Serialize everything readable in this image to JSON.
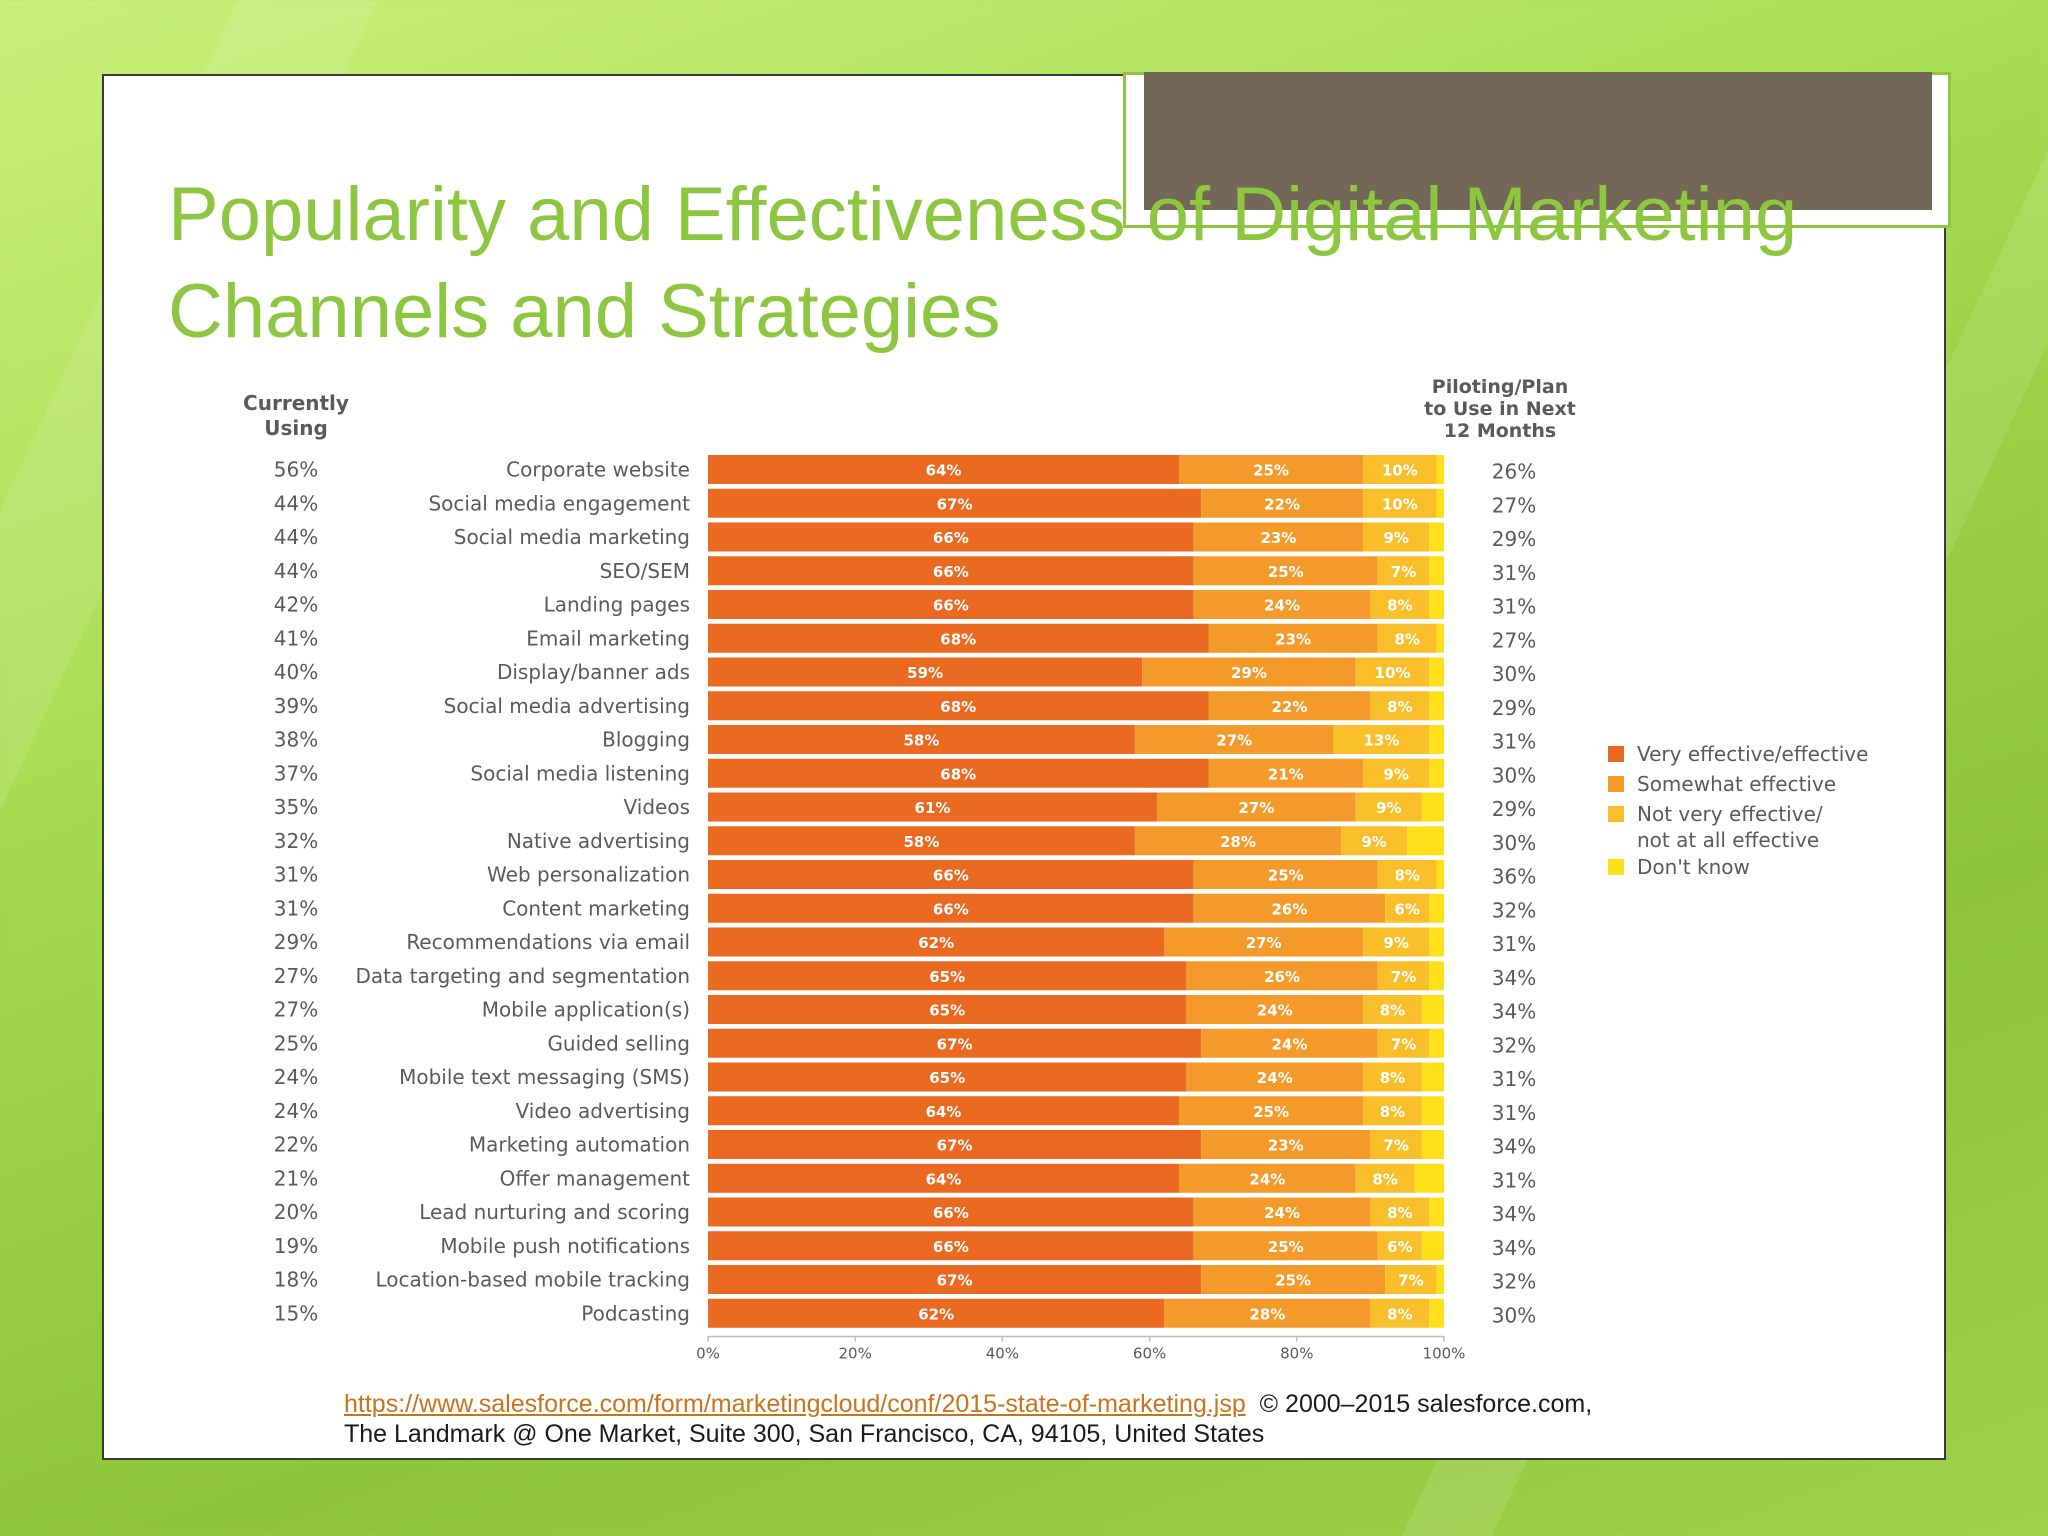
{
  "slide": {
    "title_line1": "Popularity and Effectiveness of Digital Marketing",
    "title_line2": "Channels and Strategies",
    "source_url": "https://www.salesforce.com/form/marketingcloud/conf/2015-state-of-marketing.jsp",
    "copyright": "© 2000–2015 salesforce.com,",
    "address": "The Landmark @ One Market, Suite 300, San Francisco, CA, 94105, United States"
  },
  "chart_data": {
    "type": "bar",
    "orientation": "horizontal",
    "stacked": true,
    "left_header": [
      "Currently",
      "Using"
    ],
    "right_header": [
      "Piloting/Plan",
      "to Use in Next",
      "12 Months"
    ],
    "categories": [
      "Corporate website",
      "Social media engagement",
      "Social media marketing",
      "SEO/SEM",
      "Landing pages",
      "Email marketing",
      "Display/banner ads",
      "Social media advertising",
      "Blogging",
      "Social media listening",
      "Videos",
      "Native advertising",
      "Web personalization",
      "Content marketing",
      "Recommendations via email",
      "Data targeting and segmentation",
      "Mobile application(s)",
      "Guided selling",
      "Mobile text messaging (SMS)",
      "Video advertising",
      "Marketing automation",
      "Offer management",
      "Lead nurturing and scoring",
      "Mobile push notifications",
      "Location-based mobile tracking",
      "Podcasting"
    ],
    "currently_using": [
      "56%",
      "44%",
      "44%",
      "44%",
      "42%",
      "41%",
      "40%",
      "39%",
      "38%",
      "37%",
      "35%",
      "32%",
      "31%",
      "31%",
      "29%",
      "27%",
      "27%",
      "25%",
      "24%",
      "24%",
      "22%",
      "21%",
      "20%",
      "19%",
      "18%",
      "15%"
    ],
    "planning": [
      "26%",
      "27%",
      "29%",
      "31%",
      "31%",
      "27%",
      "30%",
      "29%",
      "31%",
      "30%",
      "29%",
      "30%",
      "36%",
      "32%",
      "31%",
      "34%",
      "34%",
      "32%",
      "31%",
      "31%",
      "34%",
      "31%",
      "34%",
      "34%",
      "32%",
      "30%"
    ],
    "series": [
      {
        "name": "Very effective/effective",
        "color": "#ea6a22",
        "values": [
          64,
          67,
          66,
          66,
          66,
          68,
          59,
          68,
          58,
          68,
          61,
          58,
          66,
          66,
          62,
          65,
          65,
          67,
          65,
          64,
          67,
          64,
          66,
          66,
          67,
          62
        ]
      },
      {
        "name": "Somewhat effective",
        "color": "#f39a2a",
        "values": [
          25,
          22,
          23,
          25,
          24,
          23,
          29,
          22,
          27,
          21,
          27,
          28,
          25,
          26,
          27,
          26,
          24,
          24,
          24,
          25,
          23,
          24,
          24,
          25,
          25,
          28
        ]
      },
      {
        "name": "Not very effective/ not at all effective",
        "color": "#f9bf2b",
        "values": [
          10,
          10,
          9,
          7,
          8,
          8,
          10,
          8,
          13,
          9,
          9,
          9,
          8,
          6,
          9,
          7,
          8,
          7,
          8,
          8,
          7,
          8,
          8,
          6,
          7,
          8
        ]
      },
      {
        "name": "Don't know",
        "color": "#fde01a",
        "values": [
          1,
          1,
          2,
          2,
          2,
          1,
          2,
          2,
          2,
          2,
          3,
          5,
          1,
          2,
          2,
          2,
          3,
          2,
          3,
          3,
          3,
          4,
          2,
          3,
          1,
          2
        ]
      }
    ],
    "legend": [
      {
        "line1": "Very effective/effective",
        "line2": ""
      },
      {
        "line1": "Somewhat effective",
        "line2": ""
      },
      {
        "line1": "Not very effective/",
        "line2": "not at all effective"
      },
      {
        "line1": "Don't know",
        "line2": ""
      }
    ],
    "x_ticks": [
      "0%",
      "20%",
      "40%",
      "60%",
      "80%",
      "100%"
    ],
    "xlim": [
      0,
      100
    ],
    "legend_position": "right"
  }
}
